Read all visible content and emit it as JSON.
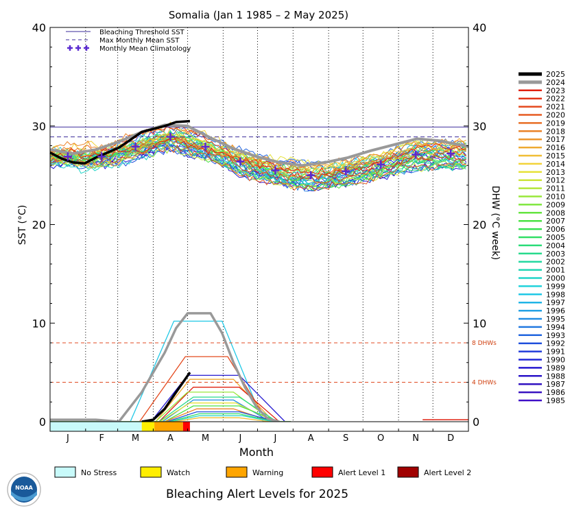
{
  "chart_data": {
    "type": "line",
    "title": "Somalia     (Jan 1 1985 – 2 May 2025)",
    "xlabel": "Month",
    "ylabel_left": "SST (°C)",
    "ylabel_right": "DHW (°C week)",
    "ylim": [
      0,
      40
    ],
    "yticks": [
      0,
      10,
      20,
      30,
      40
    ],
    "months": [
      "J",
      "F",
      "M",
      "A",
      "M",
      "J",
      "J",
      "A",
      "S",
      "O",
      "N",
      "D"
    ],
    "bleaching_threshold_sst": 29.9,
    "max_monthly_mean_sst": 28.9,
    "monthly_mean_climatology": [
      26.9,
      26.9,
      27.9,
      28.9,
      27.9,
      26.4,
      25.5,
      25.0,
      25.4,
      26.1,
      27.1,
      27.2
    ],
    "dhw_thresholds": [
      {
        "value": 8,
        "label": "8 DHWs"
      },
      {
        "value": 4,
        "label": "4 DHWs"
      }
    ],
    "legend": [
      {
        "label": "Bleaching Threshold SST",
        "style": "solid",
        "color": "#3a2a9a"
      },
      {
        "label": "Max Monthly Mean SST",
        "style": "dashed",
        "color": "#3a2a9a"
      },
      {
        "label": "Monthly Mean Climatology",
        "style": "plus",
        "color": "#5a2ad0"
      }
    ],
    "series_2025_sst": {
      "x_day": [
        0,
        10,
        20,
        30,
        40,
        50,
        60,
        70,
        80,
        90,
        100,
        110,
        122
      ],
      "values": [
        27.3,
        26.7,
        26.3,
        26.2,
        26.8,
        27.3,
        27.8,
        28.6,
        29.4,
        29.7,
        30.0,
        30.4,
        30.5
      ]
    },
    "series_2024_sst": {
      "x_day": [
        0,
        20,
        40,
        60,
        80,
        100,
        120,
        140,
        160,
        180,
        200,
        220,
        240,
        260,
        280,
        300,
        320,
        340,
        365
      ],
      "values": [
        27.6,
        27.2,
        27.6,
        28.4,
        29.4,
        30.1,
        30.0,
        28.8,
        27.7,
        26.9,
        26.3,
        26.0,
        26.3,
        26.8,
        27.5,
        28.1,
        28.7,
        28.5,
        27.9
      ]
    },
    "series_2024_dhw": {
      "x_day": [
        0,
        40,
        60,
        80,
        100,
        110,
        120,
        130,
        140,
        150,
        160,
        170,
        180,
        190,
        200
      ],
      "values": [
        0.2,
        0.2,
        0,
        3.0,
        7.0,
        9.5,
        11.0,
        11.0,
        11.0,
        9.0,
        6.0,
        3.5,
        1.5,
        0.3,
        0
      ]
    },
    "series_2025_dhw": {
      "x_day": [
        80,
        90,
        100,
        110,
        122
      ],
      "values": [
        0,
        0.2,
        1.3,
        3.0,
        5.0
      ]
    },
    "year_legend": [
      {
        "year": "2025",
        "color": "#000000"
      },
      {
        "year": "2024",
        "color": "#999999"
      },
      {
        "year": "2023",
        "color": "#e02010"
      },
      {
        "year": "2022",
        "color": "#e23418"
      },
      {
        "year": "2021",
        "color": "#e4481c"
      },
      {
        "year": "2020",
        "color": "#e65a20"
      },
      {
        "year": "2019",
        "color": "#e86e24"
      },
      {
        "year": "2018",
        "color": "#ea8228"
      },
      {
        "year": "2017",
        "color": "#ec962c"
      },
      {
        "year": "2016",
        "color": "#eeaa30"
      },
      {
        "year": "2015",
        "color": "#f0be34"
      },
      {
        "year": "2014",
        "color": "#f2d238"
      },
      {
        "year": "2013",
        "color": "#e6e23a"
      },
      {
        "year": "2012",
        "color": "#cce43a"
      },
      {
        "year": "2011",
        "color": "#b2e63a"
      },
      {
        "year": "2010",
        "color": "#98e83a"
      },
      {
        "year": "2009",
        "color": "#7ee63c"
      },
      {
        "year": "2008",
        "color": "#64e440"
      },
      {
        "year": "2007",
        "color": "#4ae244"
      },
      {
        "year": "2006",
        "color": "#36e050"
      },
      {
        "year": "2005",
        "color": "#30de64"
      },
      {
        "year": "2004",
        "color": "#2adc78"
      },
      {
        "year": "2003",
        "color": "#26da8c"
      },
      {
        "year": "2002",
        "color": "#22d8a0"
      },
      {
        "year": "2001",
        "color": "#20d6b4"
      },
      {
        "year": "2000",
        "color": "#20d4c8"
      },
      {
        "year": "1999",
        "color": "#20d2dc"
      },
      {
        "year": "1998",
        "color": "#20c8e6"
      },
      {
        "year": "1997",
        "color": "#20b4e6"
      },
      {
        "year": "1996",
        "color": "#20a0e4"
      },
      {
        "year": "1995",
        "color": "#208ce2"
      },
      {
        "year": "1994",
        "color": "#2078e0"
      },
      {
        "year": "1993",
        "color": "#2064de"
      },
      {
        "year": "1992",
        "color": "#2050dc"
      },
      {
        "year": "1991",
        "color": "#203cda"
      },
      {
        "year": "1990",
        "color": "#2028d8"
      },
      {
        "year": "1989",
        "color": "#2418d0"
      },
      {
        "year": "1988",
        "color": "#2a14c8"
      },
      {
        "year": "1987",
        "color": "#3012c0"
      },
      {
        "year": "1986",
        "color": "#3810c0"
      },
      {
        "year": "1985",
        "color": "#4010c8"
      }
    ],
    "alert_bar_2025": [
      {
        "level": "No Stress",
        "start_day": 0,
        "end_day": 80,
        "color": "#c8fafa"
      },
      {
        "level": "Watch",
        "start_day": 80,
        "end_day": 91,
        "color": "#ffee00"
      },
      {
        "level": "Warning",
        "start_day": 91,
        "end_day": 116,
        "color": "#ffa500"
      },
      {
        "level": "Alert Level 1",
        "start_day": 116,
        "end_day": 122,
        "color": "#ff0000"
      }
    ],
    "alert_legend": [
      {
        "label": "No Stress",
        "color": "#c8fafa"
      },
      {
        "label": "Watch",
        "color": "#ffee00"
      },
      {
        "label": "Warning",
        "color": "#ffa500"
      },
      {
        "label": "Alert Level 1",
        "color": "#ff0000"
      },
      {
        "label": "Alert Level 2",
        "color": "#a00000"
      }
    ],
    "footer_title": "Bleaching Alert Levels for 2025",
    "logo_text": "NOAA"
  }
}
